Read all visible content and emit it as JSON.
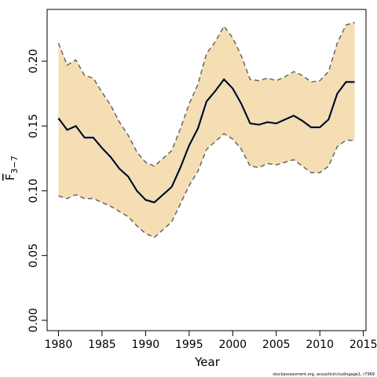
{
  "chart_data": {
    "type": "line",
    "title": "",
    "xlabel": "Year",
    "ylabel_main": "F",
    "ylabel_sub": "3−7",
    "xlim": [
      1978.7,
      2015.3
    ],
    "ylim": [
      -0.008,
      0.24
    ],
    "xticks": [
      1980,
      1985,
      1990,
      1995,
      2000,
      2005,
      2010,
      2015
    ],
    "yticks": [
      0.0,
      0.05,
      0.1,
      0.15,
      0.2
    ],
    "ytick_labels": [
      "0.00",
      "0.05",
      "0.10",
      "0.15",
      "0.20"
    ],
    "grid": false,
    "x": [
      1980,
      1981,
      1982,
      1983,
      1984,
      1985,
      1986,
      1987,
      1988,
      1989,
      1990,
      1991,
      1992,
      1993,
      1994,
      1995,
      1996,
      1997,
      1998,
      1999,
      2000,
      2001,
      2002,
      2003,
      2004,
      2005,
      2006,
      2007,
      2008,
      2009,
      2010,
      2011,
      2012,
      2013,
      2014
    ],
    "series": [
      {
        "role": "estimate",
        "values": [
          0.156,
          0.147,
          0.15,
          0.141,
          0.141,
          0.133,
          0.126,
          0.117,
          0.111,
          0.1,
          0.093,
          0.091,
          0.097,
          0.103,
          0.118,
          0.135,
          0.148,
          0.169,
          0.177,
          0.186,
          0.179,
          0.167,
          0.152,
          0.151,
          0.153,
          0.152,
          0.155,
          0.158,
          0.154,
          0.149,
          0.149,
          0.155,
          0.175,
          0.184,
          0.184
        ]
      },
      {
        "role": "upper",
        "values": [
          0.214,
          0.197,
          0.201,
          0.189,
          0.187,
          0.176,
          0.166,
          0.153,
          0.143,
          0.13,
          0.122,
          0.119,
          0.125,
          0.131,
          0.148,
          0.167,
          0.182,
          0.206,
          0.215,
          0.227,
          0.218,
          0.204,
          0.186,
          0.185,
          0.187,
          0.185,
          0.188,
          0.192,
          0.189,
          0.184,
          0.185,
          0.192,
          0.214,
          0.228,
          0.23
        ]
      },
      {
        "role": "lower",
        "values": [
          0.096,
          0.094,
          0.097,
          0.094,
          0.094,
          0.091,
          0.088,
          0.084,
          0.08,
          0.073,
          0.067,
          0.064,
          0.07,
          0.076,
          0.09,
          0.104,
          0.115,
          0.132,
          0.138,
          0.144,
          0.14,
          0.132,
          0.119,
          0.118,
          0.121,
          0.12,
          0.122,
          0.124,
          0.119,
          0.114,
          0.114,
          0.119,
          0.134,
          0.139,
          0.139
        ]
      }
    ],
    "colors": {
      "band": "#f5deb3",
      "estimate": "#000000",
      "bounds": "#666666",
      "axis": "#000000"
    }
  },
  "footer_text": "stockassessment.org, acousticincludingage1, r7969"
}
